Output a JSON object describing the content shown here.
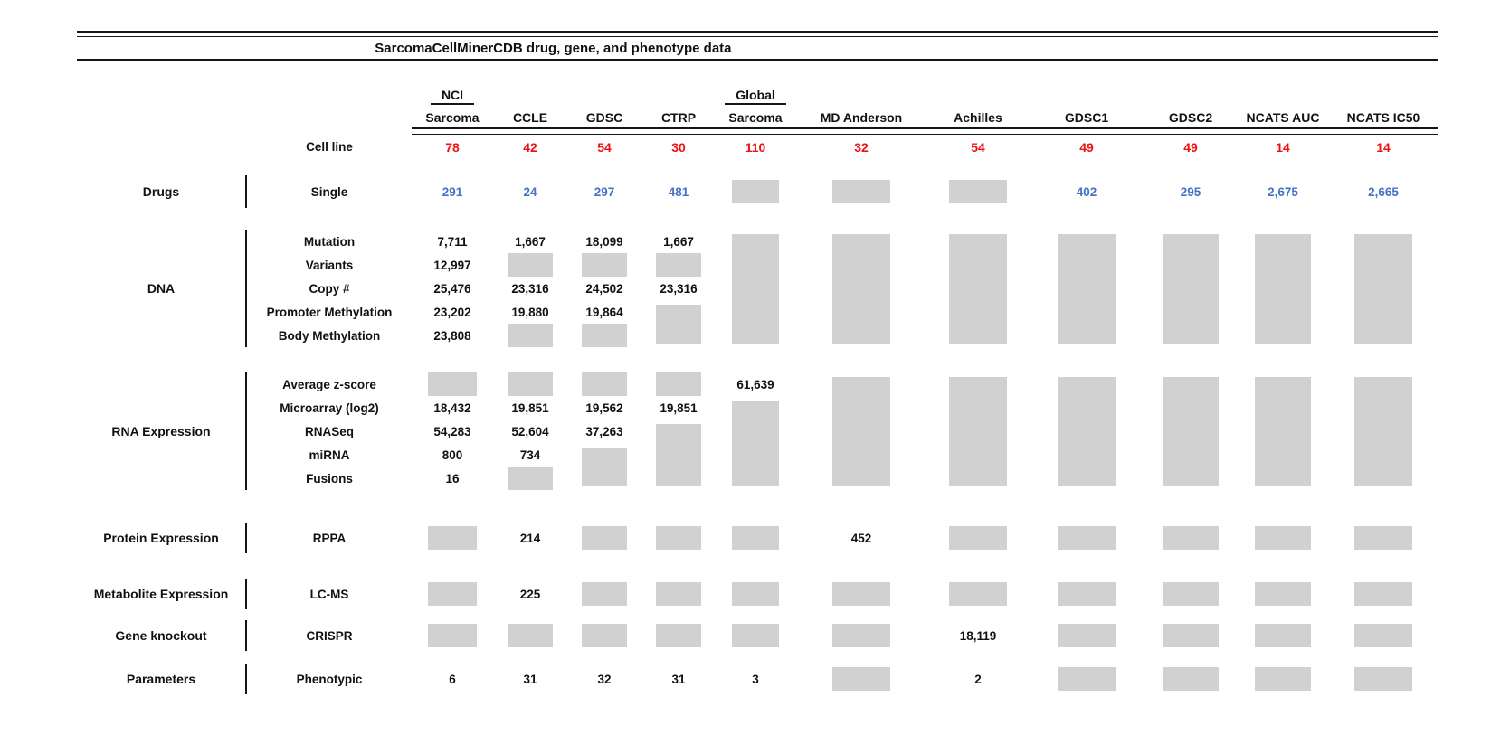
{
  "figure": {
    "title": "SarcomaCellMinerCDB drug, gene, and phenotype data",
    "colors": {
      "cell_line_count_red": "#ee1111",
      "drug_count_blue": "#4472c4",
      "missing_data_gray": "#d1d1d1",
      "text_black": "#111111"
    }
  },
  "chart_data": {
    "type": "table",
    "title": "SarcomaCellMinerCDB drug, gene, and phenotype data",
    "columns": [
      {
        "top": "NCI",
        "label": "Sarcoma"
      },
      {
        "label": "CCLE"
      },
      {
        "label": "GDSC"
      },
      {
        "label": "CTRP"
      },
      {
        "top": "Global",
        "label": "Sarcoma"
      },
      {
        "label": "MD Anderson"
      },
      {
        "label": "Achilles"
      },
      {
        "label": "GDSC1"
      },
      {
        "label": "GDSC2"
      },
      {
        "label": "NCATS AUC"
      },
      {
        "label": "NCATS IC50"
      }
    ],
    "cell_line": {
      "label": "Cell line",
      "values": [
        "78",
        "42",
        "54",
        "30",
        "110",
        "32",
        "54",
        "49",
        "49",
        "14",
        "14"
      ]
    },
    "sections": [
      {
        "group": "Drugs",
        "rows": [
          {
            "label": "Single",
            "blue": true,
            "cells": [
              "291",
              "24",
              "297",
              "481",
              {
                "na": 1
              },
              {
                "na": 1
              },
              {
                "na": 1
              },
              "402",
              "295",
              "2,675",
              "2,665"
            ]
          }
        ]
      },
      {
        "group": "DNA",
        "dense": true,
        "rows": [
          {
            "label": "Mutation",
            "cells": [
              "7,711",
              "1,667",
              "18,099",
              "1,667",
              {
                "na": 5
              },
              {
                "na": 5
              },
              {
                "na": 5
              },
              {
                "na": 5
              },
              {
                "na": 5
              },
              {
                "na": 5
              },
              {
                "na": 5
              }
            ]
          },
          {
            "label": "Variants",
            "cells": [
              "12,997",
              {
                "na": 1
              },
              {
                "na": 1
              },
              {
                "na": 1
              },
              null,
              null,
              null,
              null,
              null,
              null,
              null
            ]
          },
          {
            "label": "Copy #",
            "cells": [
              "25,476",
              "23,316",
              "24,502",
              "23,316",
              null,
              null,
              null,
              null,
              null,
              null,
              null
            ]
          },
          {
            "label": "Promoter Methylation",
            "cells": [
              "23,202",
              "19,880",
              "19,864",
              {
                "na": 2
              },
              null,
              null,
              null,
              null,
              null,
              null,
              null
            ]
          },
          {
            "label": "Body Methylation",
            "cells": [
              "23,808",
              {
                "na": 1
              },
              {
                "na": 1
              },
              null,
              null,
              null,
              null,
              null,
              null,
              null,
              null
            ]
          }
        ]
      },
      {
        "group": "RNA Expression",
        "dense": true,
        "rows": [
          {
            "label": "Average z-score",
            "cells": [
              {
                "na": 1
              },
              {
                "na": 1
              },
              {
                "na": 1
              },
              {
                "na": 1
              },
              "61,639",
              {
                "na": 5
              },
              {
                "na": 5
              },
              {
                "na": 5
              },
              {
                "na": 5
              },
              {
                "na": 5
              },
              {
                "na": 5
              }
            ]
          },
          {
            "label": "Microarray (log2)",
            "cells": [
              "18,432",
              "19,851",
              "19,562",
              "19,851",
              {
                "na": 4
              },
              null,
              null,
              null,
              null,
              null,
              null
            ]
          },
          {
            "label": "RNASeq",
            "cells": [
              "54,283",
              "52,604",
              "37,263",
              {
                "na": 3
              },
              null,
              null,
              null,
              null,
              null,
              null,
              null
            ]
          },
          {
            "label": "miRNA",
            "cells": [
              "800",
              "734",
              {
                "na": 2
              },
              null,
              null,
              null,
              null,
              null,
              null,
              null,
              null
            ]
          },
          {
            "label": "Fusions",
            "cells": [
              "16",
              {
                "na": 1
              },
              null,
              null,
              null,
              null,
              null,
              null,
              null,
              null,
              null
            ]
          }
        ]
      },
      {
        "group": "Protein Expression",
        "rows": [
          {
            "label": "RPPA",
            "cells": [
              {
                "na": 1
              },
              "214",
              {
                "na": 1
              },
              {
                "na": 1
              },
              {
                "na": 1
              },
              "452",
              {
                "na": 1
              },
              {
                "na": 1
              },
              {
                "na": 1
              },
              {
                "na": 1
              },
              {
                "na": 1
              }
            ]
          }
        ]
      },
      {
        "group": "Metabolite Expression",
        "rows": [
          {
            "label": "LC-MS",
            "cells": [
              {
                "na": 1
              },
              "225",
              {
                "na": 1
              },
              {
                "na": 1
              },
              {
                "na": 1
              },
              {
                "na": 1
              },
              {
                "na": 1
              },
              {
                "na": 1
              },
              {
                "na": 1
              },
              {
                "na": 1
              },
              {
                "na": 1
              }
            ]
          }
        ]
      },
      {
        "group": "Gene knockout",
        "rows": [
          {
            "label": "CRISPR",
            "cells": [
              {
                "na": 1
              },
              {
                "na": 1
              },
              {
                "na": 1
              },
              {
                "na": 1
              },
              {
                "na": 1
              },
              {
                "na": 1
              },
              "18,119",
              {
                "na": 1
              },
              {
                "na": 1
              },
              {
                "na": 1
              },
              {
                "na": 1
              }
            ]
          }
        ]
      },
      {
        "group": "Parameters",
        "rows": [
          {
            "label": "Phenotypic",
            "cells": [
              "6",
              "31",
              "32",
              "31",
              "3",
              {
                "na": 1
              },
              "2",
              {
                "na": 1
              },
              {
                "na": 1
              },
              {
                "na": 1
              },
              {
                "na": 1
              }
            ]
          }
        ]
      }
    ]
  }
}
